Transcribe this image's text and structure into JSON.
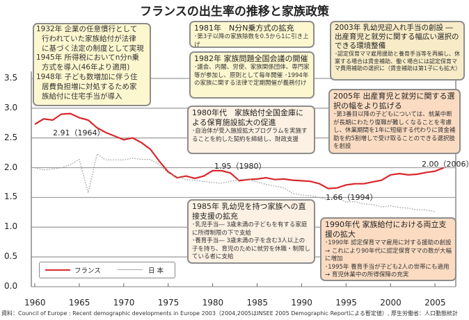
{
  "chart_data": {
    "type": "line",
    "title": "フランスの出生率の推移と家族政策",
    "xlabel": "",
    "ylabel": "",
    "xlim": [
      1959.5,
      2006.5
    ],
    "ylim": [
      0,
      3.5
    ],
    "yticks": [
      "0.0",
      "0.5",
      "1.0",
      "1.5",
      "2.0",
      "2.5",
      "3.0",
      "3.5"
    ],
    "xticks": [
      "1960",
      "1965",
      "1970",
      "1975",
      "1980",
      "1985",
      "1990",
      "1995",
      "2000",
      "2005"
    ],
    "grid": true,
    "legend_position": "bottom-left",
    "series": [
      {
        "name": "フランス",
        "color": "#d9262b",
        "style": "solid",
        "x": [
          1960,
          1961,
          1962,
          1963,
          1964,
          1965,
          1966,
          1967,
          1968,
          1969,
          1970,
          1971,
          1972,
          1973,
          1974,
          1975,
          1976,
          1977,
          1978,
          1979,
          1980,
          1981,
          1982,
          1983,
          1984,
          1985,
          1986,
          1987,
          1988,
          1989,
          1990,
          1991,
          1992,
          1993,
          1994,
          1995,
          1996,
          1997,
          1998,
          1999,
          2000,
          2001,
          2002,
          2003,
          2004,
          2005,
          2006
        ],
        "values": [
          2.73,
          2.82,
          2.8,
          2.9,
          2.91,
          2.84,
          2.8,
          2.67,
          2.59,
          2.53,
          2.47,
          2.5,
          2.42,
          2.31,
          2.11,
          1.93,
          1.83,
          1.86,
          1.82,
          1.86,
          1.95,
          1.95,
          1.91,
          1.78,
          1.8,
          1.81,
          1.83,
          1.8,
          1.81,
          1.79,
          1.78,
          1.77,
          1.73,
          1.65,
          1.66,
          1.71,
          1.73,
          1.73,
          1.76,
          1.79,
          1.88,
          1.9,
          1.88,
          1.89,
          1.92,
          1.94,
          2.0
        ]
      },
      {
        "name": "日 本",
        "color": "#999999",
        "style": "dotted",
        "x": [
          1960,
          1961,
          1962,
          1963,
          1964,
          1965,
          1966,
          1967,
          1968,
          1969,
          1970,
          1971,
          1972,
          1973,
          1974,
          1975,
          1976,
          1977,
          1978,
          1979,
          1980,
          1981,
          1982,
          1983,
          1984,
          1985,
          1986,
          1987,
          1988,
          1989,
          1990,
          1991,
          1992,
          1993,
          1994,
          1995,
          1996,
          1997,
          1998,
          1999,
          2000,
          2001,
          2002,
          2003,
          2004,
          2005
        ],
        "values": [
          2.0,
          1.96,
          1.98,
          2.0,
          2.05,
          2.14,
          1.58,
          2.23,
          2.13,
          2.13,
          2.13,
          2.16,
          2.14,
          2.14,
          2.05,
          1.91,
          1.85,
          1.8,
          1.79,
          1.77,
          1.75,
          1.74,
          1.77,
          1.8,
          1.81,
          1.76,
          1.72,
          1.69,
          1.66,
          1.57,
          1.54,
          1.53,
          1.5,
          1.46,
          1.5,
          1.42,
          1.43,
          1.39,
          1.38,
          1.34,
          1.36,
          1.33,
          1.32,
          1.29,
          1.29,
          1.26
        ]
      }
    ],
    "annotations": [
      "2.91（1964）",
      "1.95（1980）",
      "1.66（1994）",
      "2.00（2006）"
    ]
  },
  "boxes": {
    "b1932": {
      "lines": [
        "1932年 企業の任意慣行として",
        "行われていた家族給付が法律",
        "に基づく法定の制度として実現",
        "1945年 所得税においてn分n乗",
        "方式を導入(46年より適用)",
        "1948年 子ども数増加に伴う住",
        "居費負担増に対処するため家",
        "族給付に住宅手当が導入"
      ]
    },
    "b1981": {
      "head": "1981年　N分N乗方式の拡充",
      "body": "･第3子以降の家族除数を0.5から1に引き上げ"
    },
    "b1982": {
      "head": "1982年 家族問題全国会議の開催",
      "body": "･議会、内閣、労使、家族関係団体、専門家等が参加し、原則として毎年開催 ･1994年の家族に関する法律で定期開催が義務付け"
    },
    "b2003": {
      "head": "2003年 乳幼児迎入れ手当の創設 ― 出産育児と就労に関する幅広い選択のできる環境整備",
      "body": "･認定保育ママ雇用援助と養育手当等を再編し、休業する場合は賃金補助、働く場合には認定保育ママ費用補助の選択に（賃金補助は第1子にも拡大）"
    },
    "b1980s": {
      "head": "1980年代　家族給付全国金庫による保育施設拡大の促進",
      "body": "･自治体が受入施設拡大プログラムを実施することを約した契約を締結し、財政支援"
    },
    "b2005": {
      "head": "2005年 出産育児と就労に関する選択の幅をより拡げる",
      "body": "･第3番目以降の子どもについては、就業中断が長期にわたり復職が難しくなることを考慮し、休業期間を1年に短縮する代わりに賃金補助を約5割増しで受け取ることのできる選択肢を創設"
    },
    "b1985": {
      "head": "1985年 乳幼児を持つ家族への直接支援の拡充",
      "body1": "･乳児手当― 3歳未満の子どもを有する家庭に所得制限の下で支給",
      "body2": "･養育手当― 3歳未満の子を含む3人以上の子を持ち、育児のために就労を休職・制限している者に支給"
    },
    "b1990s": {
      "head": "1990年代 家族給付における両立支援の拡大",
      "body1": "･1990年 認定保育ママ雇用に対する援助の創設 → これにより90年代に認定保育ママの数が大幅に増加",
      "body2": "･1995年 養育手当が子ども2人の世帯にも適用 → 育児休業中の所得保障の充実"
    }
  },
  "footer": "資料：Council of Europe : Recent demographic developments in Europe 2003（2004,2005はINSEE 2005 Demographic Reportによる暫定値）, 厚生労働省：人口動態統計"
}
